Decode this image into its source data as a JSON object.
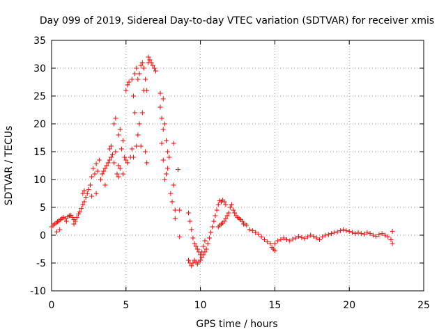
{
  "chart_data": {
    "type": "scatter",
    "title": "Day 099 of 2019, Sidereal Day-to-day VTEC variation (SDTVAR) for receiver xmis",
    "xlabel": "GPS time / hours",
    "ylabel": "SDTVAR / TECUs",
    "xlim": [
      0,
      25
    ],
    "ylim": [
      -10,
      35
    ],
    "xticks": [
      "0",
      "5",
      "10",
      "15",
      "20",
      "25"
    ],
    "yticks": [
      "-10",
      "-5",
      "0",
      "5",
      "10",
      "15",
      "20",
      "25",
      "30",
      "35"
    ],
    "grid": true,
    "marker": "plus",
    "color": "#ff0000",
    "series": [
      {
        "name": "SDTVAR",
        "points": [
          [
            0.0,
            1.5
          ],
          [
            0.1,
            1.8
          ],
          [
            0.2,
            2.0
          ],
          [
            0.3,
            2.2
          ],
          [
            0.35,
            0.6
          ],
          [
            0.4,
            2.4
          ],
          [
            0.5,
            2.6
          ],
          [
            0.55,
            1.0
          ],
          [
            0.6,
            2.8
          ],
          [
            0.7,
            3.0
          ],
          [
            0.8,
            3.2
          ],
          [
            0.9,
            3.0
          ],
          [
            1.0,
            2.5
          ],
          [
            1.1,
            3.3
          ],
          [
            1.2,
            3.5
          ],
          [
            1.3,
            3.6
          ],
          [
            1.4,
            3.2
          ],
          [
            1.5,
            2.8
          ],
          [
            1.5,
            2.0
          ],
          [
            1.6,
            2.5
          ],
          [
            1.7,
            3.2
          ],
          [
            1.8,
            3.8
          ],
          [
            1.9,
            4.2
          ],
          [
            2.0,
            4.8
          ],
          [
            2.1,
            5.5
          ],
          [
            2.1,
            7.5
          ],
          [
            2.2,
            6.0
          ],
          [
            2.2,
            8.0
          ],
          [
            2.3,
            6.8
          ],
          [
            2.4,
            7.5
          ],
          [
            2.5,
            8.2
          ],
          [
            2.6,
            9.0
          ],
          [
            2.7,
            7.0
          ],
          [
            2.7,
            10.5
          ],
          [
            2.8,
            12.0
          ],
          [
            2.9,
            11.0
          ],
          [
            3.0,
            12.8
          ],
          [
            3.0,
            7.5
          ],
          [
            3.1,
            11.5
          ],
          [
            3.2,
            13.5
          ],
          [
            3.3,
            10.0
          ],
          [
            3.4,
            11.0
          ],
          [
            3.5,
            11.5
          ],
          [
            3.6,
            12.0
          ],
          [
            3.6,
            9.0
          ],
          [
            3.7,
            12.5
          ],
          [
            3.8,
            13.0
          ],
          [
            3.9,
            13.5
          ],
          [
            4.0,
            14.0
          ],
          [
            3.9,
            15.5
          ],
          [
            4.0,
            16.0
          ],
          [
            4.1,
            14.5
          ],
          [
            4.2,
            13.0
          ],
          [
            4.2,
            20.0
          ],
          [
            4.3,
            21.0
          ],
          [
            4.3,
            15.0
          ],
          [
            4.4,
            11.0
          ],
          [
            4.5,
            10.5
          ],
          [
            4.5,
            12.5
          ],
          [
            4.5,
            18.0
          ],
          [
            4.6,
            19.0
          ],
          [
            4.6,
            12.0
          ],
          [
            4.7,
            15.5
          ],
          [
            4.8,
            17.0
          ],
          [
            4.8,
            11.0
          ],
          [
            4.9,
            14.0
          ],
          [
            5.0,
            13.5
          ],
          [
            5.0,
            26.0
          ],
          [
            5.1,
            27.0
          ],
          [
            5.1,
            13.0
          ],
          [
            5.2,
            27.5
          ],
          [
            5.3,
            14.0
          ],
          [
            5.4,
            28.0
          ],
          [
            5.4,
            15.5
          ],
          [
            5.5,
            25.0
          ],
          [
            5.5,
            14.0
          ],
          [
            5.6,
            29.0
          ],
          [
            5.6,
            22.0
          ],
          [
            5.7,
            30.0
          ],
          [
            5.7,
            16.0
          ],
          [
            5.8,
            28.0
          ],
          [
            5.8,
            18.0
          ],
          [
            5.9,
            29.0
          ],
          [
            5.9,
            20.0
          ],
          [
            6.0,
            30.5
          ],
          [
            6.0,
            16.0
          ],
          [
            6.1,
            31.0
          ],
          [
            6.1,
            22.0
          ],
          [
            6.2,
            30.0
          ],
          [
            6.2,
            26.0
          ],
          [
            6.3,
            28.0
          ],
          [
            6.3,
            15.0
          ],
          [
            6.4,
            26.0
          ],
          [
            6.4,
            13.0
          ],
          [
            6.5,
            32.0
          ],
          [
            6.5,
            31.0
          ],
          [
            6.6,
            31.5
          ],
          [
            6.7,
            31.0
          ],
          [
            6.8,
            30.5
          ],
          [
            6.9,
            30.0
          ],
          [
            7.0,
            29.5
          ],
          [
            7.3,
            25.5
          ],
          [
            7.3,
            23.0
          ],
          [
            7.4,
            21.0
          ],
          [
            7.4,
            16.5
          ],
          [
            7.5,
            24.5
          ],
          [
            7.5,
            19.0
          ],
          [
            7.6,
            20.0
          ],
          [
            7.5,
            13.5
          ],
          [
            7.6,
            10.0
          ],
          [
            7.7,
            11.0
          ],
          [
            7.7,
            17.0
          ],
          [
            7.8,
            15.0
          ],
          [
            7.8,
            12.0
          ],
          [
            7.9,
            14.0
          ],
          [
            8.0,
            7.5
          ],
          [
            8.1,
            6.0
          ],
          [
            8.2,
            16.5
          ],
          [
            8.2,
            9.0
          ],
          [
            8.3,
            4.5
          ],
          [
            8.3,
            3.0
          ],
          [
            8.5,
            11.8
          ],
          [
            8.6,
            4.5
          ],
          [
            8.6,
            -0.3
          ],
          [
            9.2,
            4.0
          ],
          [
            9.3,
            2.5
          ],
          [
            9.4,
            1.0
          ],
          [
            9.5,
            -0.5
          ],
          [
            9.6,
            -1.5
          ],
          [
            9.7,
            -2.0
          ],
          [
            9.8,
            -2.5
          ],
          [
            9.9,
            -3.0
          ],
          [
            10.0,
            -3.5
          ],
          [
            10.1,
            -3.0
          ],
          [
            10.2,
            -2.0
          ],
          [
            10.3,
            -1.0
          ],
          [
            9.2,
            -4.5
          ],
          [
            9.3,
            -5.0
          ],
          [
            9.4,
            -5.5
          ],
          [
            9.5,
            -5.0
          ],
          [
            9.6,
            -4.5
          ],
          [
            9.7,
            -4.8
          ],
          [
            9.8,
            -5.2
          ],
          [
            9.9,
            -4.8
          ],
          [
            10.0,
            -4.5
          ],
          [
            10.1,
            -4.0
          ],
          [
            10.2,
            -3.5
          ],
          [
            10.3,
            -3.0
          ],
          [
            10.4,
            -2.5
          ],
          [
            10.5,
            -1.5
          ],
          [
            10.6,
            -0.5
          ],
          [
            10.7,
            0.5
          ],
          [
            10.8,
            1.5
          ],
          [
            10.9,
            2.5
          ],
          [
            11.0,
            3.5
          ],
          [
            11.1,
            4.5
          ],
          [
            11.2,
            5.5
          ],
          [
            11.3,
            6.2
          ],
          [
            11.4,
            6.0
          ],
          [
            11.5,
            6.3
          ],
          [
            11.6,
            6.0
          ],
          [
            11.7,
            5.5
          ],
          [
            11.2,
            1.5
          ],
          [
            11.3,
            1.8
          ],
          [
            11.4,
            2.0
          ],
          [
            11.5,
            2.2
          ],
          [
            11.6,
            2.5
          ],
          [
            11.7,
            3.0
          ],
          [
            11.8,
            3.5
          ],
          [
            11.9,
            4.0
          ],
          [
            12.0,
            5.0
          ],
          [
            12.1,
            5.5
          ],
          [
            12.2,
            4.5
          ],
          [
            12.3,
            4.0
          ],
          [
            12.4,
            3.5
          ],
          [
            12.5,
            3.2
          ],
          [
            12.6,
            3.0
          ],
          [
            12.7,
            2.8
          ],
          [
            12.8,
            2.5
          ],
          [
            12.9,
            2.0
          ],
          [
            13.0,
            2.0
          ],
          [
            13.1,
            1.8
          ],
          [
            13.3,
            1.0
          ],
          [
            13.5,
            0.8
          ],
          [
            13.7,
            0.5
          ],
          [
            13.9,
            0.2
          ],
          [
            14.1,
            -0.3
          ],
          [
            14.3,
            -0.8
          ],
          [
            14.5,
            -1.2
          ],
          [
            14.7,
            -1.5
          ],
          [
            14.8,
            -2.2
          ],
          [
            14.9,
            -2.5
          ],
          [
            15.0,
            -2.8
          ],
          [
            15.0,
            -1.5
          ],
          [
            15.2,
            -1.0
          ],
          [
            15.4,
            -0.8
          ],
          [
            15.6,
            -0.5
          ],
          [
            15.8,
            -0.8
          ],
          [
            16.0,
            -1.0
          ],
          [
            16.2,
            -0.7
          ],
          [
            16.4,
            -0.5
          ],
          [
            16.6,
            -0.2
          ],
          [
            16.8,
            -0.4
          ],
          [
            17.0,
            -0.6
          ],
          [
            17.2,
            -0.3
          ],
          [
            17.4,
            0.0
          ],
          [
            17.6,
            -0.2
          ],
          [
            17.8,
            -0.5
          ],
          [
            18.0,
            -0.8
          ],
          [
            18.2,
            -0.3
          ],
          [
            18.4,
            0.0
          ],
          [
            18.6,
            0.1
          ],
          [
            18.8,
            0.3
          ],
          [
            19.0,
            0.5
          ],
          [
            19.2,
            0.6
          ],
          [
            19.4,
            0.8
          ],
          [
            19.6,
            1.0
          ],
          [
            19.8,
            0.8
          ],
          [
            20.0,
            0.7
          ],
          [
            20.2,
            0.5
          ],
          [
            20.4,
            0.3
          ],
          [
            20.6,
            0.5
          ],
          [
            20.8,
            0.3
          ],
          [
            21.0,
            0.2
          ],
          [
            21.2,
            0.5
          ],
          [
            21.4,
            0.3
          ],
          [
            21.6,
            0.0
          ],
          [
            21.8,
            -0.2
          ],
          [
            22.0,
            0.1
          ],
          [
            22.2,
            0.3
          ],
          [
            22.4,
            0.0
          ],
          [
            22.6,
            -0.3
          ],
          [
            22.8,
            -0.8
          ],
          [
            22.9,
            -1.5
          ],
          [
            22.9,
            0.7
          ]
        ]
      }
    ]
  }
}
